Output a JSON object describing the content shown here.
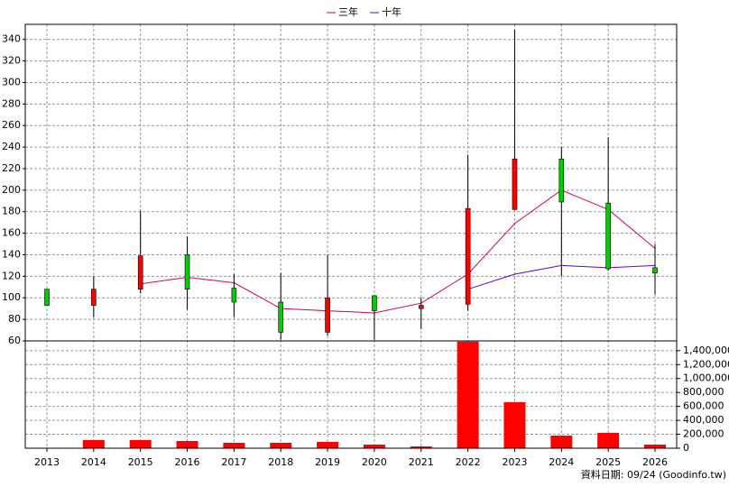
{
  "chart_data": {
    "type": "candlestick",
    "categories": [
      "2013",
      "2014",
      "2015",
      "2016",
      "2017",
      "2018",
      "2019",
      "2020",
      "2021",
      "2022",
      "2023",
      "2024",
      "2025",
      "2026"
    ],
    "open": [
      108,
      93,
      108,
      140,
      109,
      96,
      68,
      102,
      90,
      94,
      182,
      229,
      188,
      128
    ],
    "high": [
      108,
      120,
      181,
      157,
      122,
      123,
      140,
      102,
      100,
      233,
      349,
      240,
      249,
      150
    ],
    "low": [
      93,
      82,
      104,
      89,
      82,
      61,
      65,
      61,
      71,
      88,
      182,
      120,
      125,
      103
    ],
    "close": [
      93,
      108,
      139,
      108,
      96,
      68,
      100,
      88,
      93,
      183,
      229,
      189,
      127,
      123
    ],
    "up_color": "#ff0000",
    "down_color": "#00cc00",
    "series": [
      {
        "name": "三年",
        "color": "#cc0066",
        "values": [
          null,
          null,
          113,
          119,
          114,
          90,
          88,
          86,
          95,
          122,
          169,
          200,
          182,
          146
        ]
      },
      {
        "name": "十年",
        "color": "#6600cc",
        "values": [
          null,
          null,
          null,
          null,
          null,
          null,
          null,
          null,
          null,
          108,
          122,
          130,
          128,
          130
        ]
      }
    ],
    "ylim": [
      60,
      354
    ],
    "yticks": [
      60,
      80,
      100,
      120,
      140,
      160,
      180,
      200,
      220,
      240,
      260,
      280,
      300,
      320,
      340
    ],
    "grid": true,
    "volume": {
      "type": "bar",
      "color": "#ff0000",
      "values": [
        null,
        117000,
        117000,
        104000,
        78000,
        78000,
        91000,
        52000,
        26000,
        1530000,
        661000,
        181000,
        220000,
        52000
      ],
      "ylim": [
        0,
        1540000
      ],
      "yticks": [
        0,
        {
          "value": 200000,
          "label": "200,000"
        },
        {
          "value": 400000,
          "label": "400,000"
        },
        {
          "value": 600000,
          "label": "600,000"
        },
        {
          "value": 800000,
          "label": "800,000"
        },
        {
          "value": 1000000,
          "label": "1,000,000"
        },
        {
          "value": 1200000,
          "label": "1,200,000"
        },
        {
          "value": 1400000,
          "label": "1,400,000"
        }
      ]
    }
  },
  "footer": "資料日期: 09/24 (Goodinfo.tw)"
}
